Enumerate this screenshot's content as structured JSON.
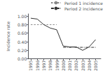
{
  "chart_data": {
    "type": "line",
    "ylabel": "Incidence rate",
    "x": [
      1995,
      1996,
      1997,
      1998,
      1999,
      2000,
      2001,
      2002,
      2003,
      2004,
      2005
    ],
    "series": [
      {
        "color": "#333333",
        "line_style": "solid",
        "values": [
          0.95,
          0.93,
          0.8,
          0.72,
          0.68,
          0.3,
          0.28,
          0.28,
          0.2,
          0.28,
          0.45
        ]
      },
      {
        "name": "Period 1 incidence",
        "color": "#888888",
        "line_style": "dotted",
        "x": [
          1995,
          1999
        ],
        "values": [
          0.8,
          0.8
        ]
      },
      {
        "name": "Period 2 incidence",
        "color": "#333333",
        "line_style": "dashdot",
        "x": [
          2000,
          2005
        ],
        "values": [
          0.27,
          0.27
        ]
      }
    ],
    "xlim": [
      1994.6,
      2005.8
    ],
    "xticks": [
      1995,
      1996,
      1997,
      1998,
      1999,
      2000,
      2001,
      2002,
      2003,
      2004,
      2005
    ],
    "ylim": [
      0.0,
      1.05
    ],
    "yticks": [
      {
        "value": 0.0,
        "label": "0.00"
      },
      {
        "value": 0.2,
        "label": "0.20"
      },
      {
        "value": 0.4,
        "label": "0.40"
      },
      {
        "value": 0.6,
        "label": "0.60"
      },
      {
        "value": 0.8,
        "label": "0.80"
      },
      {
        "value": 1.0,
        "label": "1.00"
      }
    ],
    "grid": false,
    "legend": "upper right"
  }
}
